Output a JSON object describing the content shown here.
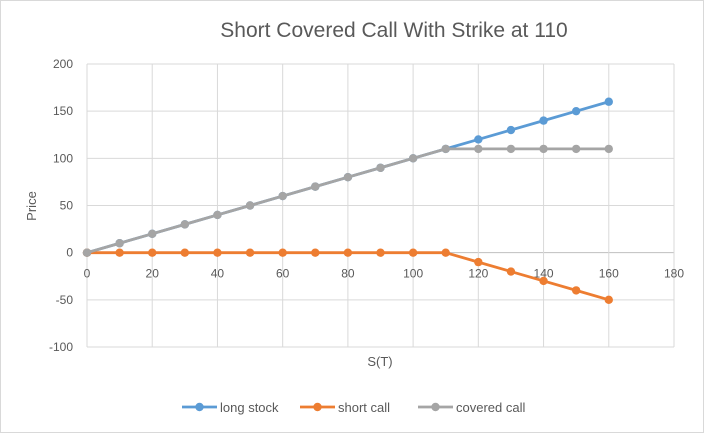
{
  "chart_data": {
    "type": "line",
    "title": "Short Covered Call With Strike at 110",
    "xlabel": "S(T)",
    "ylabel": "Price",
    "xlim": [
      0,
      180
    ],
    "ylim": [
      -100,
      200
    ],
    "x_ticks": [
      "0",
      "20",
      "40",
      "60",
      "80",
      "100",
      "120",
      "140",
      "160",
      "180"
    ],
    "y_ticks": [
      "200",
      "150",
      "100",
      "50",
      "0",
      "-50",
      "-100"
    ],
    "grid": true,
    "legend_position": "bottom",
    "x": [
      0,
      10,
      20,
      30,
      40,
      50,
      60,
      70,
      80,
      90,
      100,
      110,
      120,
      130,
      140,
      150,
      160
    ],
    "series": [
      {
        "name": "long stock",
        "color": "#5b9bd5",
        "values": [
          0,
          10,
          20,
          30,
          40,
          50,
          60,
          70,
          80,
          90,
          100,
          110,
          120,
          130,
          140,
          150,
          160
        ]
      },
      {
        "name": "short call",
        "color": "#ed7d31",
        "values": [
          0,
          0,
          0,
          0,
          0,
          0,
          0,
          0,
          0,
          0,
          0,
          0,
          -10,
          -20,
          -30,
          -40,
          -50
        ]
      },
      {
        "name": "covered call",
        "color": "#a5a5a5",
        "values": [
          0,
          10,
          20,
          30,
          40,
          50,
          60,
          70,
          80,
          90,
          100,
          110,
          110,
          110,
          110,
          110,
          110
        ]
      }
    ]
  }
}
